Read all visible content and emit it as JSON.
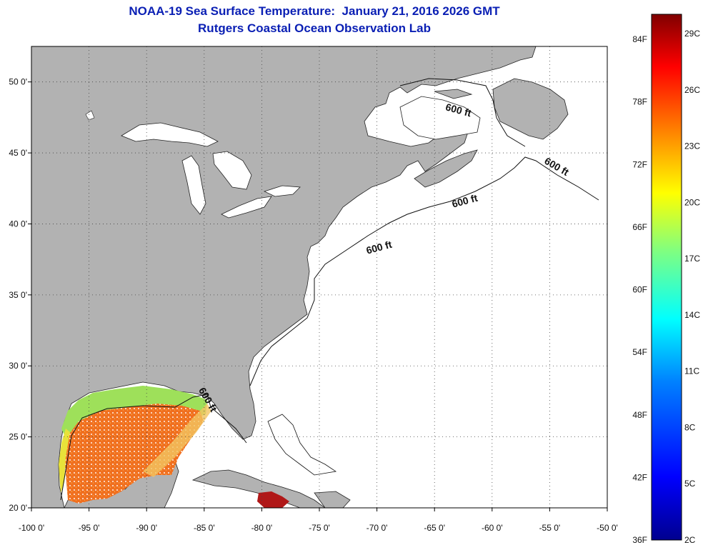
{
  "title": {
    "line1": "NOAA-19 Sea Surface Temperature:  January 21, 2016 2026 GMT",
    "line2": "Rutgers Coastal Ocean Observation Lab"
  },
  "map": {
    "lon_range": [
      -100,
      -50
    ],
    "lat_range": [
      20,
      52.5
    ],
    "lon_ticks": [
      "-100 0'",
      "-95 0'",
      "-90 0'",
      "-85 0'",
      "-80 0'",
      "-75 0'",
      "-70 0'",
      "-65 0'",
      "-60 0'",
      "-55 0'",
      "-50 0'"
    ],
    "lat_ticks": [
      "20 0'",
      "25 0'",
      "30 0'",
      "35 0'",
      "40 0'",
      "45 0'",
      "50 0'"
    ],
    "contour_labels": [
      "600 ft",
      "600 ft",
      "600 ft",
      "600 ft",
      "600 ft"
    ],
    "land_color": "#b2b2b2",
    "water_color": "#ffffff"
  },
  "colorbar": {
    "fahrenheit_labels": [
      "84F",
      "78F",
      "72F",
      "66F",
      "60F",
      "54F",
      "48F",
      "42F",
      "36F"
    ],
    "celsius_labels": [
      "29C",
      "26C",
      "23C",
      "20C",
      "17C",
      "14C",
      "11C",
      "8C",
      "5C",
      "2C"
    ],
    "range_c": [
      2,
      30
    ],
    "colors": [
      "#00008f",
      "#0000ff",
      "#0080ff",
      "#00ffff",
      "#80ff80",
      "#ffff00",
      "#ff8000",
      "#ff0000",
      "#800000"
    ]
  }
}
